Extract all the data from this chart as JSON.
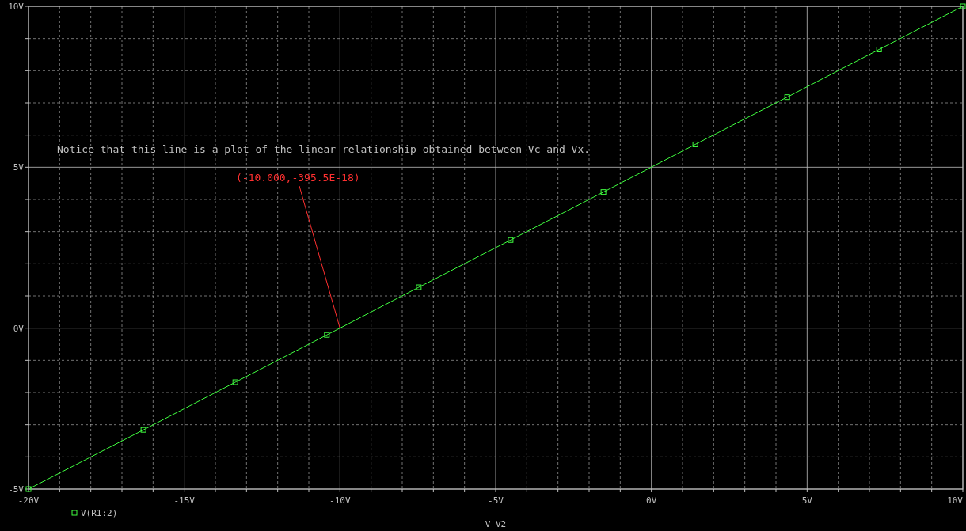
{
  "chart_data": {
    "type": "line",
    "xlabel": "V_V2",
    "xlim": [
      -20,
      10
    ],
    "ylim": [
      -5,
      10
    ],
    "xticks": [
      {
        "value": -20,
        "label": "-20V"
      },
      {
        "value": -19,
        "label": null
      },
      {
        "value": -18,
        "label": null
      },
      {
        "value": -17,
        "label": null
      },
      {
        "value": -16,
        "label": null
      },
      {
        "value": -15,
        "label": "-15V"
      },
      {
        "value": -14,
        "label": null
      },
      {
        "value": -13,
        "label": null
      },
      {
        "value": -12,
        "label": null
      },
      {
        "value": -11,
        "label": null
      },
      {
        "value": -10,
        "label": "-10V"
      },
      {
        "value": -9,
        "label": null
      },
      {
        "value": -8,
        "label": null
      },
      {
        "value": -7,
        "label": null
      },
      {
        "value": -6,
        "label": null
      },
      {
        "value": -5,
        "label": "-5V"
      },
      {
        "value": -4,
        "label": null
      },
      {
        "value": -3,
        "label": null
      },
      {
        "value": -2,
        "label": null
      },
      {
        "value": -1,
        "label": null
      },
      {
        "value": 0,
        "label": "0V"
      },
      {
        "value": 1,
        "label": null
      },
      {
        "value": 2,
        "label": null
      },
      {
        "value": 3,
        "label": null
      },
      {
        "value": 4,
        "label": null
      },
      {
        "value": 5,
        "label": "5V"
      },
      {
        "value": 6,
        "label": null
      },
      {
        "value": 7,
        "label": null
      },
      {
        "value": 8,
        "label": null
      },
      {
        "value": 9,
        "label": null
      },
      {
        "value": 10,
        "label": "10V"
      }
    ],
    "yticks": [
      {
        "value": -5,
        "label": "-5V"
      },
      {
        "value": -4,
        "label": null
      },
      {
        "value": -3,
        "label": null
      },
      {
        "value": -2,
        "label": null
      },
      {
        "value": -1,
        "label": null
      },
      {
        "value": 0,
        "label": "0V"
      },
      {
        "value": 1,
        "label": null
      },
      {
        "value": 2,
        "label": null
      },
      {
        "value": 3,
        "label": null
      },
      {
        "value": 4,
        "label": null
      },
      {
        "value": 5,
        "label": "5V"
      },
      {
        "value": 6,
        "label": null
      },
      {
        "value": 7,
        "label": null
      },
      {
        "value": 8,
        "label": null
      },
      {
        "value": 9,
        "label": null
      },
      {
        "value": 10,
        "label": "10V"
      }
    ],
    "grid": true,
    "legend": "bottom left",
    "marker": "square",
    "line_style": "solid",
    "series": [
      {
        "name": "V(R1:2)",
        "color": "#40ff40",
        "x": [
          -20,
          -16.31,
          -13.36,
          -10.42,
          -7.47,
          -4.52,
          -1.54,
          1.41,
          4.36,
          7.31,
          10
        ],
        "values": [
          -5,
          -3.16,
          -1.68,
          -0.21,
          1.27,
          2.74,
          4.23,
          5.71,
          7.18,
          8.66,
          10
        ]
      }
    ],
    "annotations": [
      "Notice that this line is a plot of the linear relationship obtained between Vc and Vx.",
      {
        "text": "(-10.000,-395.5E-18)",
        "x": -10,
        "y": 0
      }
    ]
  }
}
